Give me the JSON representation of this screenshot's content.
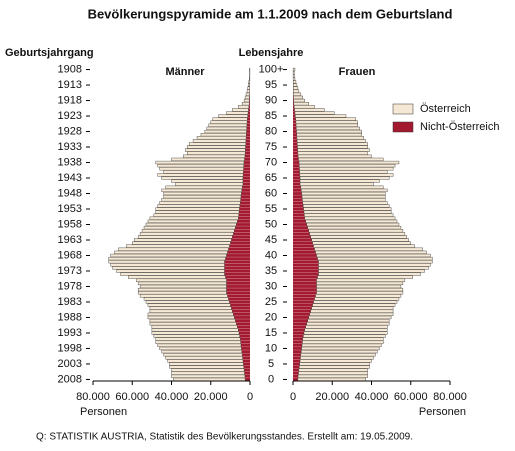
{
  "chart_data": {
    "type": "population-pyramid",
    "title": "Bevölkerungspyramide am 1.1.2009 nach dem Geburtsland",
    "y2_label": "Geburtsjahrgang",
    "y_label": "Lebensjahre",
    "left_label": "Männer",
    "right_label": "Frauen",
    "x_label": "Personen",
    "source": "Q: STATISTIK AUSTRIA, Statistik des Bevölkerungsstandes. Erstellt am: 19.05.2009.",
    "legend": "upper right",
    "y": [
      0,
      1,
      2,
      3,
      4,
      5,
      6,
      7,
      8,
      9,
      10,
      11,
      12,
      13,
      14,
      15,
      16,
      17,
      18,
      19,
      20,
      21,
      22,
      23,
      24,
      25,
      26,
      27,
      28,
      29,
      30,
      31,
      32,
      33,
      34,
      35,
      36,
      37,
      38,
      39,
      40,
      41,
      42,
      43,
      44,
      45,
      46,
      47,
      48,
      49,
      50,
      51,
      52,
      53,
      54,
      55,
      56,
      57,
      58,
      59,
      60,
      61,
      62,
      63,
      64,
      65,
      66,
      67,
      68,
      69,
      70,
      71,
      72,
      73,
      74,
      75,
      76,
      77,
      78,
      79,
      80,
      81,
      82,
      83,
      84,
      85,
      86,
      87,
      88,
      89,
      90,
      91,
      92,
      93,
      94,
      95,
      96,
      97,
      98,
      99,
      100
    ],
    "ylim": [
      -0.5,
      100.5
    ],
    "yticks": [
      0,
      5,
      10,
      15,
      20,
      25,
      30,
      35,
      40,
      45,
      50,
      55,
      60,
      65,
      70,
      75,
      80,
      85,
      90,
      95,
      {
        "value": 100,
        "label": "100+"
      }
    ],
    "y2lim": [
      2008.5,
      1907.5
    ],
    "y2ticks": [
      2008,
      2003,
      1998,
      1993,
      1988,
      1983,
      1978,
      1973,
      1968,
      1963,
      1958,
      1953,
      1948,
      1943,
      1938,
      1933,
      1928,
      1923,
      1918,
      1913,
      1908
    ],
    "xlim": [
      0,
      80000
    ],
    "xticks": [
      {
        "value": 0,
        "label": "0"
      },
      {
        "value": 20000,
        "label": "20.000"
      },
      {
        "value": 40000,
        "label": "40.000"
      },
      {
        "value": 60000,
        "label": "60.000"
      },
      {
        "value": 80000,
        "label": "80.000"
      }
    ],
    "series": [
      {
        "name": "Österreich",
        "color": "#f5e8d4",
        "men": [
          36500,
          37400,
          37200,
          37000,
          37800,
          37600,
          38400,
          39200,
          40000,
          40800,
          41600,
          42400,
          43200,
          43000,
          43700,
          44400,
          44000,
          43500,
          44000,
          43500,
          44000,
          43500,
          42000,
          41500,
          42000,
          42500,
          43000,
          44500,
          45000,
          45000,
          44000,
          45000,
          46000,
          49500,
          53000,
          55000,
          57000,
          58000,
          59000,
          59500,
          59000,
          57500,
          56000,
          52500,
          50000,
          49500,
          48000,
          47500,
          47000,
          46500,
          46000,
          45500,
          45000,
          43200,
          42400,
          42600,
          41800,
          41000,
          40200,
          39400,
          39600,
          40800,
          39000,
          34400,
          36400,
          41400,
          43500,
          40600,
          42700,
          43800,
          44900,
          37200,
          31400,
          29500,
          30600,
          29700,
          28800,
          26900,
          25000,
          23100,
          21200,
          20300,
          19400,
          18500,
          17600,
          14800,
          11000,
          8200,
          5400,
          3600,
          2700,
          2250,
          1800,
          1350,
          1080,
          800,
          520,
          340,
          250,
          160,
          250
        ],
        "women": [
          34500,
          35400,
          35200,
          35000,
          35800,
          35600,
          36400,
          37200,
          38000,
          38800,
          39600,
          40400,
          41200,
          41000,
          41700,
          42400,
          42000,
          41500,
          42000,
          41500,
          42000,
          42500,
          42000,
          41500,
          42000,
          42500,
          43000,
          43500,
          44000,
          44000,
          43000,
          44000,
          45000,
          48500,
          52000,
          54000,
          56000,
          57000,
          58000,
          58500,
          58000,
          56500,
          55000,
          51500,
          50000,
          49500,
          49000,
          48500,
          48000,
          47500,
          47000,
          46500,
          46000,
          45200,
          44400,
          44600,
          43800,
          43000,
          42200,
          42400,
          42600,
          43800,
          42000,
          37400,
          40400,
          45400,
          47500,
          44600,
          47700,
          48800,
          50900,
          43200,
          37400,
          35500,
          36600,
          35700,
          35800,
          34900,
          34000,
          33100,
          33200,
          32300,
          31400,
          31500,
          30600,
          25800,
          20000,
          15200,
          10400,
          7600,
          5700,
          4750,
          3800,
          2850,
          2380,
          1900,
          1420,
          940,
          750,
          560,
          950
        ]
      },
      {
        "name": "Nicht-Österreich",
        "color": "#a3192f",
        "men": [
          2500,
          2600,
          2800,
          3000,
          3200,
          3400,
          3600,
          3800,
          4000,
          4200,
          4400,
          4600,
          4800,
          5000,
          5300,
          5600,
          6000,
          6500,
          7000,
          7500,
          8000,
          8500,
          9000,
          9500,
          10000,
          10500,
          11000,
          11500,
          12000,
          12000,
          12000,
          12000,
          12000,
          12500,
          13000,
          13000,
          13000,
          13000,
          13000,
          12500,
          12000,
          11500,
          11000,
          10500,
          10000,
          9500,
          9000,
          8500,
          8000,
          7500,
          7000,
          6500,
          6000,
          5800,
          5600,
          5400,
          5200,
          5000,
          4800,
          4600,
          4400,
          4200,
          4000,
          3600,
          3600,
          3600,
          3500,
          3400,
          3300,
          3200,
          3100,
          2800,
          2600,
          2500,
          2400,
          2300,
          2200,
          2100,
          2000,
          1900,
          1800,
          1700,
          1600,
          1500,
          1400,
          1200,
          1000,
          800,
          600,
          400,
          300,
          250,
          200,
          150,
          120,
          100,
          80,
          60,
          50,
          40,
          50
        ],
        "women": [
          2500,
          2600,
          2800,
          3000,
          3200,
          3400,
          3600,
          3800,
          4000,
          4200,
          4400,
          4600,
          4800,
          5000,
          5300,
          5600,
          6000,
          6500,
          7000,
          7500,
          8000,
          8500,
          9000,
          9500,
          10000,
          10500,
          11000,
          11500,
          12000,
          12000,
          12000,
          12000,
          12000,
          12500,
          13000,
          13000,
          13000,
          13000,
          13000,
          12500,
          12000,
          11500,
          11000,
          10500,
          10000,
          9500,
          9000,
          8500,
          8000,
          7500,
          7000,
          6500,
          6000,
          5800,
          5600,
          5400,
          5200,
          5000,
          4800,
          4600,
          4400,
          4200,
          4000,
          3600,
          3600,
          3600,
          3500,
          3400,
          3300,
          3200,
          3100,
          2800,
          2600,
          2500,
          2400,
          2300,
          2200,
          2100,
          2000,
          1900,
          1800,
          1700,
          1600,
          1500,
          1400,
          1200,
          1000,
          800,
          600,
          400,
          300,
          250,
          200,
          150,
          120,
          100,
          80,
          60,
          50,
          40,
          50
        ]
      }
    ]
  }
}
